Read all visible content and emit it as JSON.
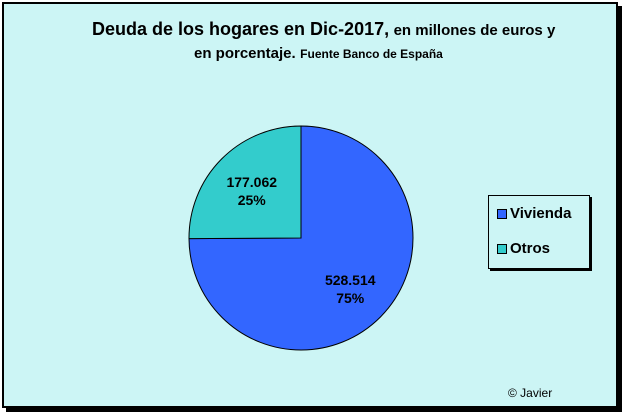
{
  "chart_data": {
    "type": "pie",
    "title": "Deuda de los hogares en Dic-2017,",
    "title_continuation": "en millones  de euros y",
    "title_line2_bold": "en porcentaje.",
    "title_source": "Fuente Banco de España",
    "slices": [
      {
        "label": "Vivienda",
        "value": 528514,
        "value_text": "528.514",
        "percent_text": "75%",
        "color": "#3366ff"
      },
      {
        "label": "Otros",
        "value": 177062,
        "value_text": "177.062",
        "percent_text": "25%",
        "color": "#33cccc"
      }
    ],
    "legend_position": "right",
    "background_color": "#ccf5f5"
  },
  "copyright": "© Javier"
}
